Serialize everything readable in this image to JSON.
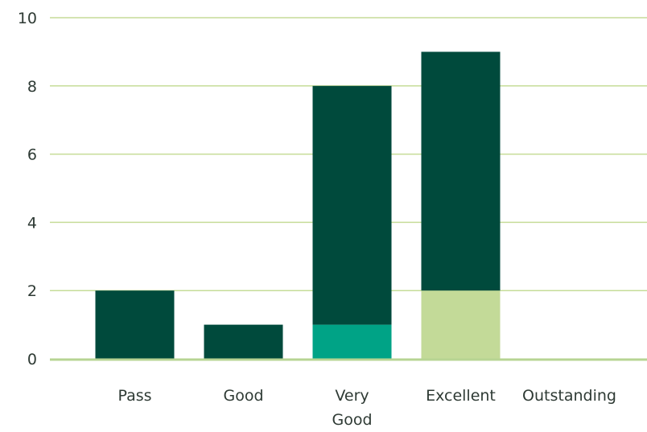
{
  "colors": {
    "grid": "#c6dc98",
    "axis": "#b7d493",
    "text": "#2e3a34"
  },
  "chart_data": {
    "type": "bar",
    "stacked": true,
    "title": "",
    "xlabel": "",
    "ylabel": "",
    "ylim": [
      0,
      10
    ],
    "yticks": [
      0,
      2,
      4,
      6,
      8,
      10
    ],
    "categories": [
      "Pass",
      "Good",
      "Very Good",
      "Excellent",
      "Outstanding"
    ],
    "category_label_lines": [
      [
        "Pass"
      ],
      [
        "Good"
      ],
      [
        "Very",
        "Good"
      ],
      [
        "Excellent"
      ],
      [
        "Outstanding"
      ]
    ],
    "grid": true,
    "legend": "none",
    "series": [
      {
        "color": "#c3da98",
        "values": [
          0,
          0,
          0,
          2,
          0
        ]
      },
      {
        "color": "#00a386",
        "values": [
          0,
          0,
          1,
          0,
          0
        ]
      },
      {
        "color": "#004a3c",
        "values": [
          2,
          1,
          7,
          7,
          0
        ]
      }
    ]
  }
}
